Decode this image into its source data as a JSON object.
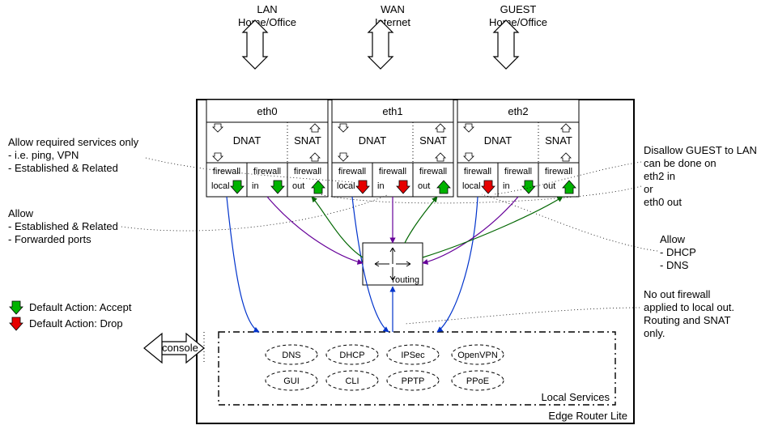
{
  "colors": {
    "accept": "#00b300",
    "drop": "#e60000",
    "flow_blue": "#0033cc",
    "flow_green": "#006600",
    "flow_purple": "#660099"
  },
  "top_labels": {
    "lan": {
      "line1": "LAN",
      "line2": "Home/Office"
    },
    "wan": {
      "line1": "WAN",
      "line2": "Internet"
    },
    "guest": {
      "line1": "GUEST",
      "line2": "Home/Office"
    }
  },
  "interfaces": {
    "eth0": {
      "name": "eth0",
      "dnat": "DNAT",
      "snat": "SNAT",
      "fw": [
        {
          "label1": "firewall",
          "label2": "local",
          "arrow": "accept"
        },
        {
          "label1": "firewall",
          "label2": "in",
          "arrow": "accept"
        },
        {
          "label1": "firewall",
          "label2": "out",
          "arrow": "accept"
        }
      ]
    },
    "eth1": {
      "name": "eth1",
      "dnat": "DNAT",
      "snat": "SNAT",
      "fw": [
        {
          "label1": "firewall",
          "label2": "local",
          "arrow": "drop"
        },
        {
          "label1": "firewall",
          "label2": "in",
          "arrow": "drop"
        },
        {
          "label1": "firewall",
          "label2": "out",
          "arrow": "accept"
        }
      ]
    },
    "eth2": {
      "name": "eth2",
      "dnat": "DNAT",
      "snat": "SNAT",
      "fw": [
        {
          "label1": "firewall",
          "label2": "local",
          "arrow": "drop"
        },
        {
          "label1": "firewall",
          "label2": "in",
          "arrow": "accept"
        },
        {
          "label1": "firewall",
          "label2": "out",
          "arrow": "accept"
        }
      ]
    }
  },
  "routing_label": "routing",
  "console_label": "console",
  "local_services": {
    "title": "Local Services",
    "row1": [
      "DNS",
      "DHCP",
      "IPSec",
      "OpenVPN"
    ],
    "row2": [
      "GUI",
      "CLI",
      "PPTP",
      "PPoE"
    ]
  },
  "router_label": "Edge Router Lite",
  "legend": {
    "accept": "Default Action: Accept",
    "drop": "Default Action: Drop"
  },
  "notes": {
    "n1": {
      "l1": "Allow required services only",
      "l2": "- i.e. ping, VPN",
      "l3": "- Established & Related"
    },
    "n2": {
      "l1": "Allow",
      "l2": "- Established & Related",
      "l3": "- Forwarded ports"
    },
    "n3": {
      "l1": "Disallow GUEST to LAN",
      "l2": "can be done on",
      "l3": "eth2 in",
      "l4": "or",
      "l5": "eth0 out"
    },
    "n4": {
      "l1": "Allow",
      "l2": " - DHCP",
      "l3": " - DNS"
    },
    "n5": {
      "l1": "No out firewall",
      "l2": "applied to local out.",
      "l3": "Routing and SNAT",
      "l4": "only."
    }
  }
}
